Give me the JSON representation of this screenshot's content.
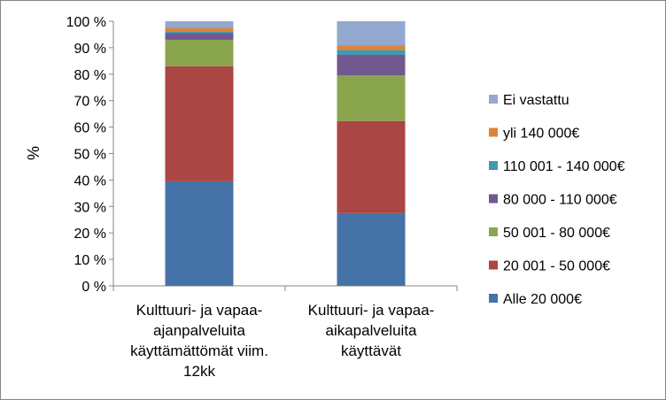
{
  "chart_data": {
    "type": "bar",
    "stacked": true,
    "title": "",
    "xlabel": "",
    "ylabel": "%",
    "ylim": [
      0,
      100
    ],
    "y_ticks": [
      "0 %",
      "10 %",
      "20 %",
      "30 %",
      "40 %",
      "50 %",
      "60 %",
      "70 %",
      "80 %",
      "90 %",
      "100 %"
    ],
    "grid": false,
    "legend_position": "right",
    "categories": [
      {
        "lines": [
          "Kulttuuri- ja vapaa-",
          "ajanpalveluita",
          "käyttämättömät viim.",
          "12kk"
        ]
      },
      {
        "lines": [
          "Kulttuuri- ja vapaa-",
          "aikapalveluita",
          "käyttävät"
        ]
      }
    ],
    "series": [
      {
        "name": "Alle 20 000€",
        "color": "#4572A7",
        "values": [
          39.5,
          27.5
        ]
      },
      {
        "name": "20 001 - 50 000€",
        "color": "#AA4643",
        "values": [
          43.5,
          34.8
        ]
      },
      {
        "name": "50 001 - 80 000€",
        "color": "#89A54E",
        "values": [
          10.0,
          17.2
        ]
      },
      {
        "name": "80 000 - 110 000€",
        "color": "#71588F",
        "values": [
          2.5,
          7.8
        ]
      },
      {
        "name": "110 001 - 140 000€",
        "color": "#4198AF",
        "values": [
          0.5,
          1.8
        ]
      },
      {
        "name": "yli 140 000€",
        "color": "#DB843D",
        "values": [
          1.5,
          1.7
        ]
      },
      {
        "name": "Ei vastattu",
        "color": "#93A9CF",
        "values": [
          2.5,
          9.2
        ]
      }
    ]
  }
}
